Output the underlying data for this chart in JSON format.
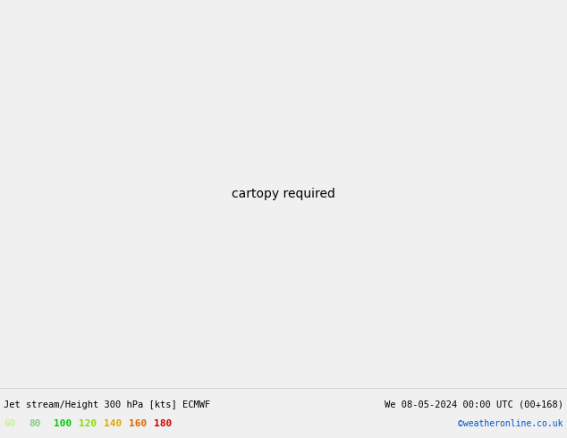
{
  "title_left": "Jet stream/Height 300 hPa [kts] ECMWF",
  "title_right": "We 08-05-2024 00:00 UTC (00+168)",
  "credit": "©weatheronline.co.uk",
  "legend_values": [
    "60",
    "80",
    "100",
    "120",
    "140",
    "160",
    "180"
  ],
  "legend_colors": [
    "#c8f0a0",
    "#a0e070",
    "#50c840",
    "#78d878",
    "#a8e850",
    "#d4f020",
    "#00cc00"
  ],
  "bg_color": "#f0f0f0",
  "land_color": "#d4edb4",
  "ocean_color": "#f0f0f0",
  "fig_width": 6.34,
  "fig_height": 4.9,
  "dpi": 100,
  "map_extent": [
    80,
    200,
    -60,
    10
  ],
  "jet_bands": [
    {
      "min_kts": 60,
      "color": "#d8f5c0"
    },
    {
      "min_kts": 80,
      "color": "#b8eea0"
    },
    {
      "min_kts": 100,
      "color": "#78d860"
    },
    {
      "min_kts": 120,
      "color": "#40c040"
    },
    {
      "min_kts": 140,
      "color": "#20a820"
    },
    {
      "min_kts": 160,
      "color": "#008800"
    },
    {
      "min_kts": 180,
      "color": "#005500"
    }
  ]
}
